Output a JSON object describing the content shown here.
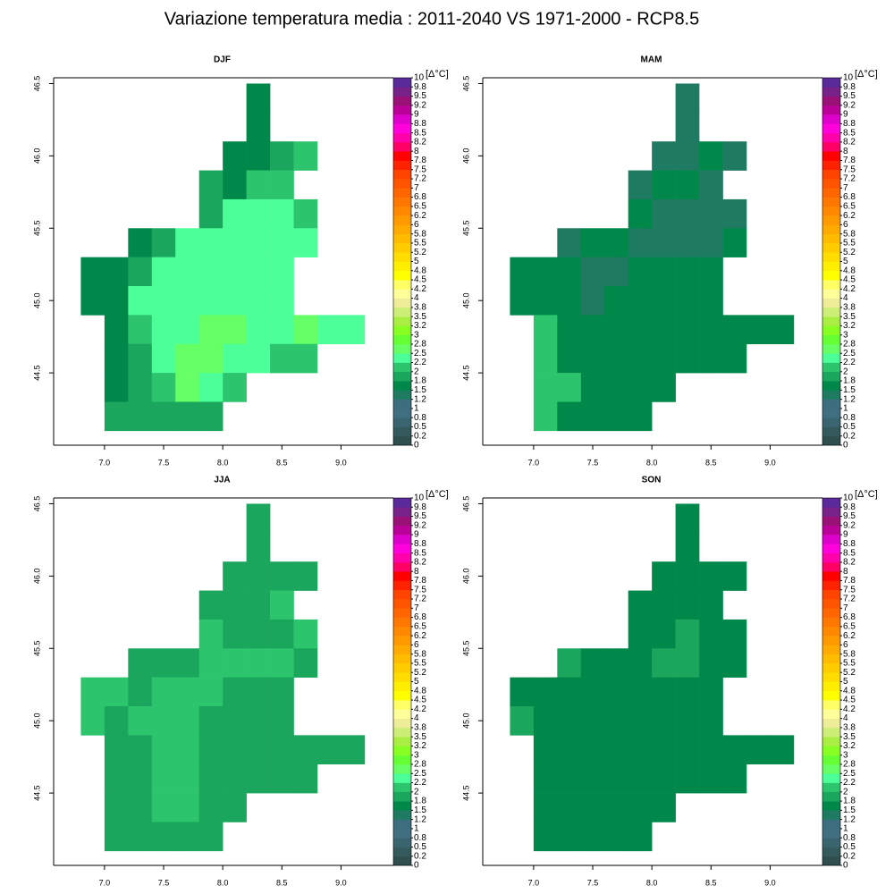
{
  "title": "Variazione temperatura media  : 2011-2040  VS 1971-2000 - RCP8.5",
  "colorbar": {
    "label": "[Δ°C]",
    "ticks": [
      0,
      {
        "value": 0.25,
        "label": "0.2"
      },
      0.5,
      {
        "value": 0.75,
        "label": "0.8"
      },
      1,
      {
        "value": 1.25,
        "label": "1.2"
      },
      1.5,
      {
        "value": 1.75,
        "label": "1.8"
      },
      2,
      {
        "value": 2.25,
        "label": "2.2"
      },
      2.5,
      {
        "value": 2.75,
        "label": "2.8"
      },
      3,
      {
        "value": 3.25,
        "label": "3.2"
      },
      3.5,
      {
        "value": 3.75,
        "label": "3.8"
      },
      4,
      {
        "value": 4.25,
        "label": "4.2"
      },
      4.5,
      {
        "value": 4.75,
        "label": "4.8"
      },
      5,
      {
        "value": 5.25,
        "label": "5.2"
      },
      5.5,
      {
        "value": 5.75,
        "label": "5.8"
      },
      6,
      {
        "value": 6.25,
        "label": "6.2"
      },
      6.5,
      {
        "value": 6.75,
        "label": "6.8"
      },
      7,
      {
        "value": 7.25,
        "label": "7.2"
      },
      7.5,
      {
        "value": 7.75,
        "label": "7.8"
      },
      8,
      {
        "value": 8.25,
        "label": "8.2"
      },
      8.5,
      {
        "value": 8.75,
        "label": "8.8"
      },
      9,
      {
        "value": 9.25,
        "label": "9.2"
      },
      9.5,
      {
        "value": 9.75,
        "label": "9.8"
      },
      10
    ],
    "colors": [
      "#2f4f4f",
      "#345a5d",
      "#3a6570",
      "#3f6f80",
      "#3d6e80",
      "#1f7a62",
      "#00884a",
      "#1aa65c",
      "#2dc46e",
      "#4dff99",
      "#66ff66",
      "#66ff33",
      "#88ff22",
      "#aaee44",
      "#ccee77",
      "#eeee99",
      "#ffff99",
      "#ffff66",
      "#ffff00",
      "#ffee00",
      "#ffdd00",
      "#ffcc00",
      "#ffbb00",
      "#ffaa00",
      "#ff9900",
      "#ff8800",
      "#ff7700",
      "#ff6600",
      "#ff5500",
      "#ff4400",
      "#ff2200",
      "#ff0000",
      "#ff0066",
      "#ff00aa",
      "#ff00dd",
      "#dd00cc",
      "#bb0099",
      "#991177",
      "#772288",
      "#5a2a9a"
    ]
  },
  "chart_data": [
    {
      "type": "heatmap",
      "title": "DJF",
      "x": [
        6.9,
        7.1,
        7.3,
        7.5,
        7.7,
        7.9,
        8.1,
        8.3,
        8.5,
        8.7,
        8.9,
        9.1
      ],
      "y": [
        46.4,
        46.2,
        46.0,
        45.8,
        45.6,
        45.4,
        45.2,
        45.0,
        44.8,
        44.6,
        44.4,
        44.2
      ],
      "z": [
        [
          null,
          null,
          null,
          null,
          null,
          null,
          null,
          1.6,
          null,
          null,
          null,
          null
        ],
        [
          null,
          null,
          null,
          null,
          null,
          null,
          null,
          1.6,
          null,
          null,
          null,
          null
        ],
        [
          null,
          null,
          null,
          null,
          null,
          null,
          1.6,
          1.6,
          1.9,
          2.1,
          null,
          null
        ],
        [
          null,
          null,
          null,
          null,
          null,
          1.9,
          1.6,
          2.1,
          2.1,
          null,
          null,
          null
        ],
        [
          null,
          null,
          null,
          null,
          null,
          1.9,
          2.4,
          2.4,
          2.4,
          2.1,
          null,
          null
        ],
        [
          null,
          null,
          1.6,
          1.9,
          2.4,
          2.4,
          2.4,
          2.4,
          2.4,
          2.4,
          null,
          null
        ],
        [
          1.6,
          1.6,
          1.9,
          2.4,
          2.4,
          2.4,
          2.4,
          2.4,
          2.4,
          null,
          null,
          null
        ],
        [
          1.6,
          1.6,
          2.4,
          2.4,
          2.4,
          2.4,
          2.4,
          2.4,
          2.4,
          null,
          null,
          null
        ],
        [
          null,
          1.6,
          2.1,
          2.4,
          2.4,
          2.6,
          2.6,
          2.4,
          2.4,
          2.6,
          2.4,
          2.4
        ],
        [
          null,
          1.6,
          1.9,
          2.4,
          2.6,
          2.6,
          2.4,
          2.4,
          2.1,
          2.1,
          null,
          null
        ],
        [
          null,
          1.6,
          1.9,
          2.1,
          2.6,
          2.4,
          2.1,
          null,
          null,
          null,
          null,
          null
        ],
        [
          null,
          1.9,
          1.9,
          1.9,
          1.9,
          1.9,
          null,
          null,
          null,
          null,
          null,
          null
        ]
      ],
      "xlim": [
        6.57,
        9.42
      ],
      "ylim": [
        44.0,
        46.54
      ],
      "xticks": [
        {
          "value": 7,
          "label": "7.0"
        },
        7.5,
        {
          "value": 8,
          "label": "8.0"
        },
        8.5,
        {
          "value": 9,
          "label": "9.0"
        }
      ],
      "yticks": [
        44.5,
        {
          "value": 45,
          "label": "45.0"
        },
        45.5,
        {
          "value": 46,
          "label": "46.0"
        },
        46.5
      ]
    },
    {
      "type": "heatmap",
      "title": "MAM",
      "x": [
        6.9,
        7.1,
        7.3,
        7.5,
        7.7,
        7.9,
        8.1,
        8.3,
        8.5,
        8.7,
        8.9,
        9.1
      ],
      "y": [
        46.4,
        46.2,
        46.0,
        45.8,
        45.6,
        45.4,
        45.2,
        45.0,
        44.8,
        44.6,
        44.4,
        44.2
      ],
      "z": [
        [
          null,
          null,
          null,
          null,
          null,
          null,
          null,
          1.4,
          null,
          null,
          null,
          null
        ],
        [
          null,
          null,
          null,
          null,
          null,
          null,
          null,
          1.4,
          null,
          null,
          null,
          null
        ],
        [
          null,
          null,
          null,
          null,
          null,
          null,
          1.4,
          1.4,
          1.6,
          1.4,
          null,
          null
        ],
        [
          null,
          null,
          null,
          null,
          null,
          1.4,
          1.6,
          1.6,
          1.4,
          null,
          null,
          null
        ],
        [
          null,
          null,
          null,
          null,
          null,
          1.6,
          1.4,
          1.4,
          1.4,
          1.4,
          null,
          null
        ],
        [
          null,
          null,
          1.4,
          1.6,
          1.6,
          1.4,
          1.4,
          1.4,
          1.4,
          1.6,
          null,
          null
        ],
        [
          1.6,
          1.6,
          1.6,
          1.4,
          1.4,
          1.6,
          1.6,
          1.6,
          1.6,
          null,
          null,
          null
        ],
        [
          1.6,
          1.6,
          1.6,
          1.4,
          1.6,
          1.6,
          1.6,
          1.6,
          1.6,
          null,
          null,
          null
        ],
        [
          null,
          2.1,
          1.6,
          1.6,
          1.6,
          1.6,
          1.6,
          1.6,
          1.6,
          1.6,
          1.6,
          1.6
        ],
        [
          null,
          2.1,
          1.6,
          1.6,
          1.6,
          1.6,
          1.6,
          1.6,
          1.6,
          1.6,
          null,
          null
        ],
        [
          null,
          2.1,
          2.1,
          1.6,
          1.6,
          1.6,
          1.6,
          null,
          null,
          null,
          null,
          null
        ],
        [
          null,
          2.1,
          1.6,
          1.6,
          1.6,
          1.6,
          null,
          null,
          null,
          null,
          null,
          null
        ]
      ],
      "xlim": [
        6.57,
        9.42
      ],
      "ylim": [
        44.0,
        46.54
      ],
      "xticks": [
        {
          "value": 7,
          "label": "7.0"
        },
        7.5,
        {
          "value": 8,
          "label": "8.0"
        },
        8.5,
        {
          "value": 9,
          "label": "9.0"
        }
      ],
      "yticks": [
        44.5,
        {
          "value": 45,
          "label": "45.0"
        },
        45.5,
        {
          "value": 46,
          "label": "46.0"
        },
        46.5
      ]
    },
    {
      "type": "heatmap",
      "title": "JJA",
      "x": [
        6.9,
        7.1,
        7.3,
        7.5,
        7.7,
        7.9,
        8.1,
        8.3,
        8.5,
        8.7,
        8.9,
        9.1
      ],
      "y": [
        46.4,
        46.2,
        46.0,
        45.8,
        45.6,
        45.4,
        45.2,
        45.0,
        44.8,
        44.6,
        44.4,
        44.2
      ],
      "z": [
        [
          null,
          null,
          null,
          null,
          null,
          null,
          null,
          1.9,
          null,
          null,
          null,
          null
        ],
        [
          null,
          null,
          null,
          null,
          null,
          null,
          null,
          1.9,
          null,
          null,
          null,
          null
        ],
        [
          null,
          null,
          null,
          null,
          null,
          null,
          1.9,
          1.9,
          1.9,
          1.9,
          null,
          null
        ],
        [
          null,
          null,
          null,
          null,
          null,
          1.9,
          1.9,
          1.9,
          2.1,
          null,
          null,
          null
        ],
        [
          null,
          null,
          null,
          null,
          null,
          2.1,
          1.9,
          1.9,
          1.9,
          2.1,
          null,
          null
        ],
        [
          null,
          null,
          1.9,
          1.9,
          1.9,
          2.1,
          2.1,
          2.1,
          2.1,
          1.9,
          null,
          null
        ],
        [
          2.1,
          2.1,
          1.9,
          2.1,
          2.1,
          2.1,
          1.9,
          1.9,
          1.9,
          null,
          null,
          null
        ],
        [
          2.1,
          1.9,
          2.1,
          2.1,
          2.1,
          1.9,
          1.9,
          1.9,
          1.9,
          null,
          null,
          null
        ],
        [
          null,
          1.9,
          1.9,
          2.1,
          2.1,
          1.9,
          1.9,
          1.9,
          1.9,
          1.9,
          1.9,
          1.9
        ],
        [
          null,
          1.9,
          1.9,
          2.1,
          2.1,
          1.9,
          1.9,
          1.9,
          1.9,
          1.9,
          null,
          null
        ],
        [
          null,
          1.9,
          1.9,
          2.1,
          2.1,
          1.9,
          1.9,
          null,
          null,
          null,
          null,
          null
        ],
        [
          null,
          1.9,
          1.9,
          1.9,
          1.9,
          1.9,
          null,
          null,
          null,
          null,
          null,
          null
        ]
      ],
      "xlim": [
        6.57,
        9.42
      ],
      "ylim": [
        44.0,
        46.54
      ],
      "xticks": [
        {
          "value": 7,
          "label": "7.0"
        },
        7.5,
        {
          "value": 8,
          "label": "8.0"
        },
        8.5,
        {
          "value": 9,
          "label": "9.0"
        }
      ],
      "yticks": [
        44.5,
        {
          "value": 45,
          "label": "45.0"
        },
        45.5,
        {
          "value": 46,
          "label": "46.0"
        },
        46.5
      ]
    },
    {
      "type": "heatmap",
      "title": "SON",
      "x": [
        6.9,
        7.1,
        7.3,
        7.5,
        7.7,
        7.9,
        8.1,
        8.3,
        8.5,
        8.7,
        8.9,
        9.1
      ],
      "y": [
        46.4,
        46.2,
        46.0,
        45.8,
        45.6,
        45.4,
        45.2,
        45.0,
        44.8,
        44.6,
        44.4,
        44.2
      ],
      "z": [
        [
          null,
          null,
          null,
          null,
          null,
          null,
          null,
          1.6,
          null,
          null,
          null,
          null
        ],
        [
          null,
          null,
          null,
          null,
          null,
          null,
          null,
          1.6,
          null,
          null,
          null,
          null
        ],
        [
          null,
          null,
          null,
          null,
          null,
          null,
          1.6,
          1.6,
          1.6,
          1.6,
          null,
          null
        ],
        [
          null,
          null,
          null,
          null,
          null,
          1.6,
          1.6,
          1.6,
          1.6,
          null,
          null,
          null
        ],
        [
          null,
          null,
          null,
          null,
          null,
          1.6,
          1.6,
          1.9,
          1.6,
          1.6,
          null,
          null
        ],
        [
          null,
          null,
          1.9,
          1.6,
          1.6,
          1.6,
          1.9,
          1.9,
          1.6,
          1.6,
          null,
          null
        ],
        [
          1.6,
          1.6,
          1.6,
          1.6,
          1.6,
          1.6,
          1.6,
          1.6,
          1.6,
          null,
          null,
          null
        ],
        [
          1.9,
          1.6,
          1.6,
          1.6,
          1.6,
          1.6,
          1.6,
          1.6,
          1.6,
          null,
          null,
          null
        ],
        [
          null,
          1.6,
          1.6,
          1.6,
          1.6,
          1.6,
          1.6,
          1.6,
          1.6,
          1.6,
          1.6,
          1.6
        ],
        [
          null,
          1.6,
          1.6,
          1.6,
          1.6,
          1.6,
          1.6,
          1.6,
          1.6,
          1.6,
          null,
          null
        ],
        [
          null,
          1.6,
          1.6,
          1.6,
          1.6,
          1.6,
          1.6,
          null,
          null,
          null,
          null,
          null
        ],
        [
          null,
          1.6,
          1.6,
          1.6,
          1.6,
          1.6,
          null,
          null,
          null,
          null,
          null,
          null
        ]
      ],
      "xlim": [
        6.57,
        9.42
      ],
      "ylim": [
        44.0,
        46.54
      ],
      "xticks": [
        {
          "value": 7,
          "label": "7.0"
        },
        7.5,
        {
          "value": 8,
          "label": "8.0"
        },
        8.5,
        {
          "value": 9,
          "label": "9.0"
        }
      ],
      "yticks": [
        44.5,
        {
          "value": 45,
          "label": "45.0"
        },
        45.5,
        {
          "value": 46,
          "label": "46.0"
        },
        46.5
      ]
    }
  ]
}
